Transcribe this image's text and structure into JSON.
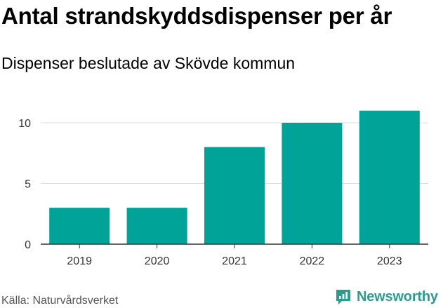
{
  "title": "Antal strandskyddsdispenser per år",
  "subtitle": "Dispenser beslutade av Skövde kommun",
  "source": "Källa: Naturvårdsverket",
  "brand": {
    "name": "Newsworthy",
    "icon": "newsworthy-logo-icon"
  },
  "colors": {
    "bar": "#00a398",
    "grid": "#dddddd",
    "axis": "#333333",
    "brand": "#2a9d8f"
  },
  "chart_data": {
    "type": "bar",
    "categories": [
      "2019",
      "2020",
      "2021",
      "2022",
      "2023"
    ],
    "values": [
      3,
      3,
      8,
      10,
      11
    ],
    "yticks": [
      0,
      5,
      10
    ],
    "ylim": [
      0,
      11
    ],
    "xlabel": "",
    "ylabel": "",
    "grid": true
  }
}
